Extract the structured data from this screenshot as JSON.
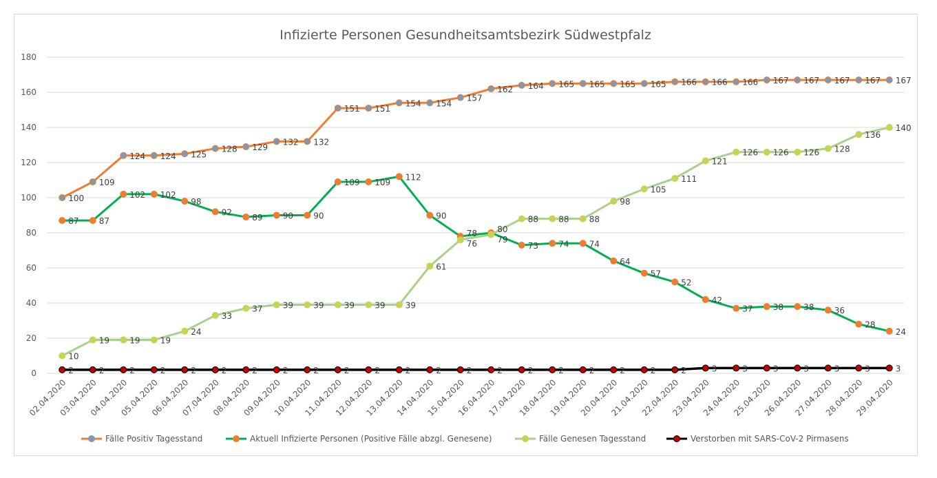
{
  "chart_data": {
    "type": "line",
    "title": "Infizierte Personen Gesundheitsamtsbezirk Südwestpfalz",
    "xlabel": "",
    "ylabel": "",
    "ylim": [
      0,
      180
    ],
    "yticks": [
      0,
      20,
      40,
      60,
      80,
      100,
      120,
      140,
      160,
      180
    ],
    "grid": true,
    "legend_position": "bottom",
    "categories": [
      "02.04.2020",
      "03.04.2020",
      "04.04.2020",
      "05.04.2020",
      "06.04.2020",
      "07.04.2020",
      "08.04.2020",
      "09.04.2020",
      "10.04.2020",
      "11.04.2020",
      "12.04.2020",
      "13.04.2020",
      "14.04.2020",
      "15.04.2020",
      "16.04.2020",
      "17.04.2020",
      "18.04.2020",
      "19.04.2020",
      "20.04.2020",
      "21.04.2020",
      "22.04.2020",
      "23.04.2020",
      "24.04.2020",
      "25.04.2020",
      "26.04.2020",
      "27.04.2020",
      "28.04.2020",
      "29.04.2020"
    ],
    "series": [
      {
        "name": "Fälle Positiv Tagesstand",
        "line_color": "#ED7D31",
        "marker_color": "#8497B0",
        "values": [
          100,
          109,
          124,
          124,
          125,
          128,
          129,
          132,
          132,
          151,
          151,
          154,
          154,
          157,
          162,
          164,
          165,
          165,
          165,
          165,
          166,
          166,
          166,
          167,
          167,
          167,
          167,
          167
        ]
      },
      {
        "name": "Aktuell Infizierte Personen (Positive Fälle abzgl. Genesene)",
        "line_color": "#00B050",
        "marker_color": "#ED7D31",
        "values": [
          87,
          87,
          102,
          102,
          98,
          92,
          89,
          90,
          90,
          109,
          109,
          112,
          90,
          78,
          80,
          73,
          74,
          74,
          64,
          57,
          52,
          42,
          37,
          38,
          38,
          36,
          28,
          24
        ]
      },
      {
        "name": "Fälle Genesen Tagesstand",
        "line_color": "#A9D18E",
        "marker_color": "#C5D356",
        "values": [
          10,
          19,
          19,
          19,
          24,
          33,
          37,
          39,
          39,
          39,
          39,
          39,
          61,
          76,
          79,
          88,
          88,
          88,
          98,
          105,
          111,
          121,
          126,
          126,
          126,
          128,
          136,
          140
        ]
      },
      {
        "name": "Verstorben mit SARS-CoV-2 Pirmasens",
        "line_color": "#000000",
        "marker_color": "#C00000",
        "values": [
          2,
          2,
          2,
          2,
          2,
          2,
          2,
          2,
          2,
          2,
          2,
          2,
          2,
          2,
          2,
          2,
          2,
          2,
          2,
          2,
          2,
          3,
          3,
          3,
          3,
          3,
          3,
          3
        ]
      }
    ]
  }
}
